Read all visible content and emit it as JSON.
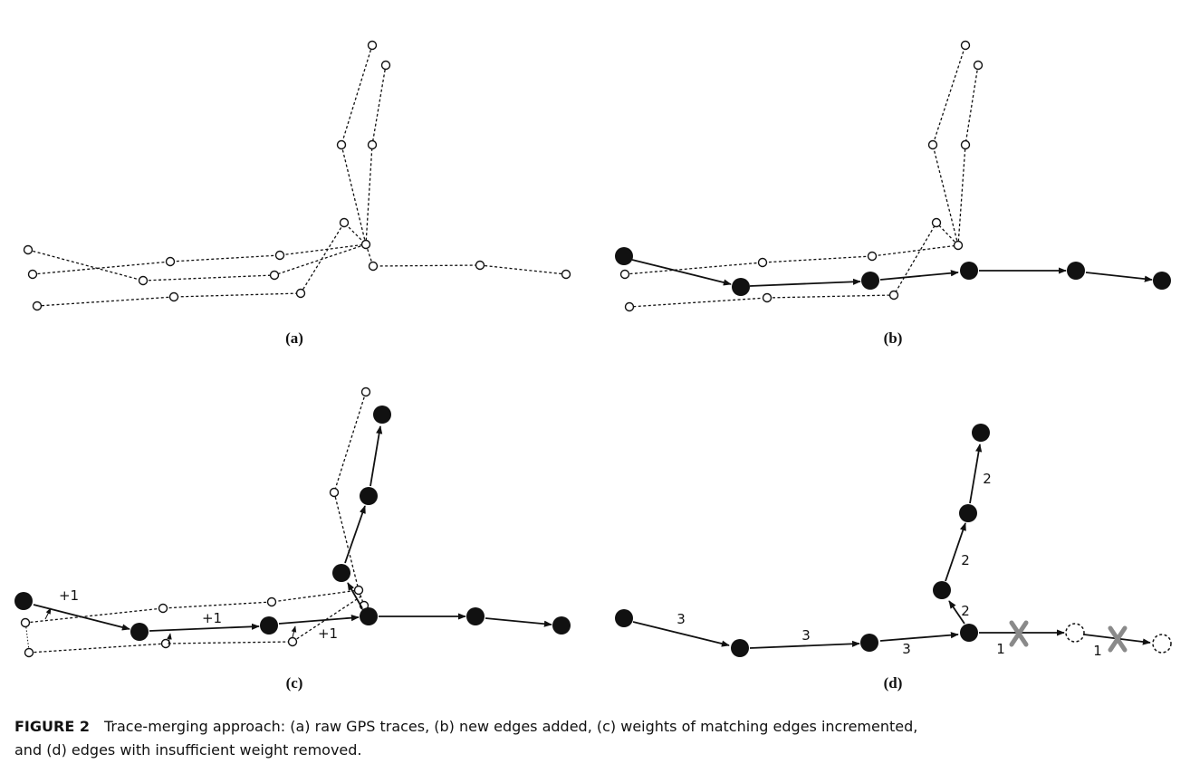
{
  "panels": {
    "a": {
      "label": "(a)"
    },
    "b": {
      "label": "(b)"
    },
    "c": {
      "label": "(c)",
      "weights": [
        "+1",
        "+1",
        "+1"
      ]
    },
    "d": {
      "label": "(d)",
      "weights": [
        "3",
        "3",
        "3",
        "1",
        "1",
        "2",
        "2",
        "2"
      ],
      "removed_marker": "X"
    }
  },
  "caption": {
    "figure_number": "FIGURE 2",
    "line1": "Trace-merging approach: (a) raw GPS traces, (b) new edges added, (c) weights of matching edges incremented,",
    "line2": "and (d) edges with insufficient weight removed."
  },
  "colors": {
    "ink": "#111111",
    "removed": "#8a8a8a"
  }
}
